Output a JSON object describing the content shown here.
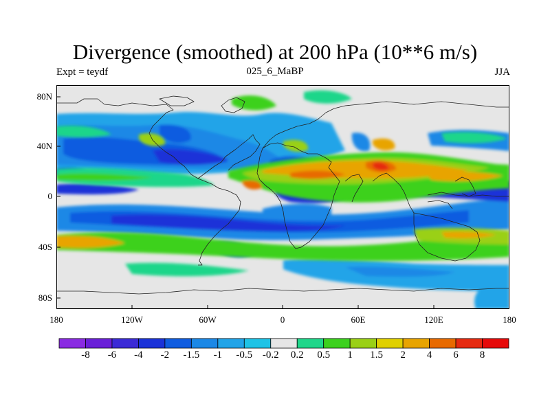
{
  "title": "Divergence (smoothed) at 200 hPa (10**6 m/s)",
  "expt_label": "Expt = teydf",
  "run_label": "025_6_MaBP",
  "season_label": "JJA",
  "lat_ticks": [
    "80N",
    "40N",
    "0",
    "40S",
    "80S"
  ],
  "lon_ticks": [
    "180",
    "120W",
    "60W",
    "0",
    "60E",
    "120E",
    "180"
  ],
  "colorbar": {
    "labels": [
      "-8",
      "-6",
      "-4",
      "-2",
      "-1.5",
      "-1",
      "-0.5",
      "-0.2",
      "0.2",
      "0.5",
      "1",
      "1.5",
      "2",
      "4",
      "6",
      "8"
    ],
    "colors": [
      "#8a2be2",
      "#6a1fd8",
      "#3b2ad6",
      "#1a32d8",
      "#0f5ce0",
      "#1b88e6",
      "#21a4e8",
      "#1ec3e6",
      "#e6e6e6",
      "#1fd68a",
      "#3cd11e",
      "#9ad016",
      "#e0d000",
      "#e8a400",
      "#e86a00",
      "#e62a10",
      "#e60a0a"
    ]
  }
}
